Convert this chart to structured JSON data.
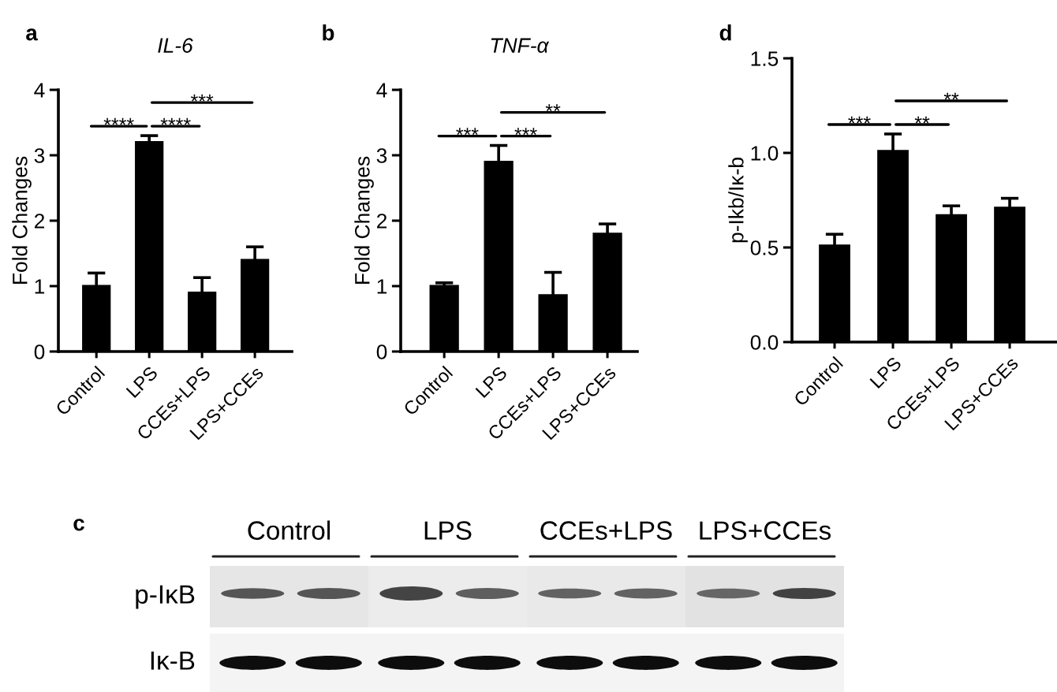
{
  "chart_data": [
    {
      "type": "bar",
      "title": "IL-6",
      "ylabel": "Fold Changes",
      "annotations": [
        "a",
        "****",
        "****",
        "***"
      ],
      "categories": [
        "Control",
        "LPS",
        "CCEs+LPS",
        "LPS+CCEs"
      ],
      "values": [
        1.0,
        3.2,
        0.9,
        1.4
      ],
      "errors": [
        0.2,
        0.1,
        0.23,
        0.2
      ],
      "color": "#000000",
      "ylim": [
        0,
        4
      ],
      "yticks": [
        0,
        1,
        2,
        3,
        4
      ]
    },
    {
      "type": "bar",
      "title": "TNF-α",
      "ylabel": "Fold Changes",
      "annotations": [
        "b",
        "***",
        "***",
        "**"
      ],
      "categories": [
        "Control",
        "LPS",
        "CCEs+LPS",
        "LPS+CCEs"
      ],
      "values": [
        1.0,
        2.9,
        0.86,
        1.8
      ],
      "errors": [
        0.05,
        0.25,
        0.35,
        0.15
      ],
      "color": "#000000",
      "ylim": [
        0,
        4
      ],
      "yticks": [
        0,
        1,
        2,
        3,
        4
      ]
    },
    {
      "type": "bar",
      "ylabel": "p-Ikb/Iκ-b",
      "annotations": [
        "d",
        "***",
        "**",
        "**"
      ],
      "categories": [
        "Control",
        "LPS",
        "CCEs+LPS",
        "LPS+CCEs"
      ],
      "values": [
        0.51,
        1.01,
        0.67,
        0.71
      ],
      "errors": [
        0.06,
        0.09,
        0.05,
        0.05
      ],
      "color": "#000000",
      "ylim": [
        0,
        1.5
      ],
      "yticks": [
        {
          "value": 0,
          "label": "0.0"
        },
        {
          "value": 0.5,
          "label": "0.5"
        },
        {
          "value": 1,
          "label": "1.0"
        },
        {
          "value": 1.5,
          "label": "1.5"
        }
      ]
    },
    {
      "type": "other",
      "annotations": [
        "c"
      ],
      "categories": [
        "Control",
        "LPS",
        "CCEs+LPS",
        "LPS+CCEs"
      ],
      "y_categories": [
        "p-IκB",
        "Iκ-B"
      ]
    }
  ]
}
